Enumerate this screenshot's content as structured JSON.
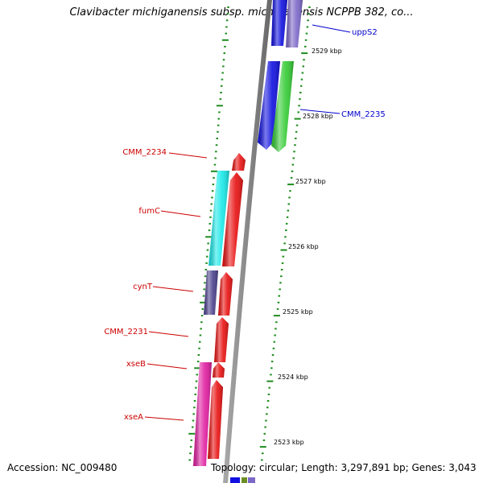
{
  "title": "Clavibacter michiganensis subsp. michiganensis NCPPB 382, co...",
  "footer": {
    "accession": "Accession: NC_009480",
    "stats": "Topology: circular; Length: 3,297,891 bp; Genes: 3,043"
  },
  "colors": {
    "backbone": "#8a8a8a",
    "tick": "#1e8c1e",
    "forward_label": "#cc0000",
    "reverse_label": "#0000cc"
  },
  "scale_labels": [
    "2529 kbp",
    "2528 kbp",
    "2527 kbp",
    "2526 kbp",
    "2525 kbp",
    "2524 kbp",
    "2523 kbp"
  ],
  "genes": [
    {
      "name": "uppS2",
      "strand": "reverse",
      "color": "#7b68c8"
    },
    {
      "name": "CMM_2235",
      "strand": "reverse",
      "color": "#33cc33"
    },
    {
      "name": "",
      "strand": "reverse",
      "color": "#1010e0"
    },
    {
      "name": "CMM_2234",
      "strand": "forward",
      "color": "#e81010"
    },
    {
      "name": "fumC",
      "strand": "forward",
      "color": "#18e8e8"
    },
    {
      "name": "cynT",
      "strand": "forward",
      "color": "#4a3f8c"
    },
    {
      "name": "CMM_2231",
      "strand": "forward",
      "color": "#e81010"
    },
    {
      "name": "xseB",
      "strand": "forward",
      "color": "#e81010"
    },
    {
      "name": "xseA",
      "strand": "forward",
      "color": "#e01ca0"
    }
  ]
}
